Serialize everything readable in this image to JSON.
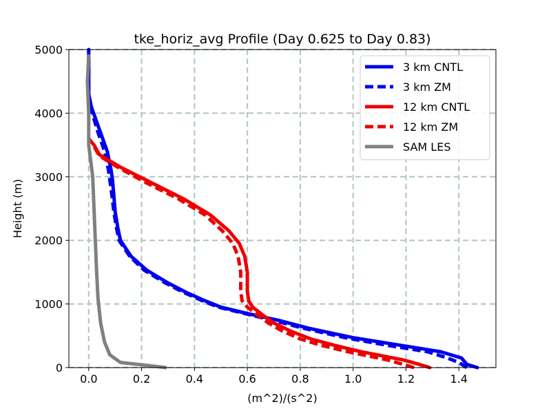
{
  "chart_data": {
    "type": "line",
    "title": "tke_horiz_avg Profile (Day 0.625 to Day 0.83)",
    "xlabel": "(m^2)/(s^2)",
    "ylabel": "Height (m)",
    "xlim": [
      -0.075,
      1.54
    ],
    "ylim": [
      0,
      5000
    ],
    "xticks": [
      0.0,
      0.2,
      0.4,
      0.6,
      0.8,
      1.0,
      1.2,
      1.4
    ],
    "xtick_labels": [
      "0.0",
      "0.2",
      "0.4",
      "0.6",
      "0.8",
      "1.0",
      "1.2",
      "1.4"
    ],
    "yticks": [
      0,
      1000,
      2000,
      3000,
      4000,
      5000
    ],
    "ytick_labels": [
      "0",
      "1000",
      "2000",
      "3000",
      "4000",
      "5000"
    ],
    "grid": true,
    "legend_position": "top-right",
    "series": [
      {
        "name": "3 km CNTL",
        "color": "#0000ee",
        "style": "solid",
        "points": [
          [
            1.47,
            0
          ],
          [
            1.43,
            50
          ],
          [
            1.41,
            150
          ],
          [
            1.33,
            250
          ],
          [
            1.18,
            350
          ],
          [
            1.0,
            470
          ],
          [
            0.83,
            620
          ],
          [
            0.72,
            740
          ],
          [
            0.6,
            850
          ],
          [
            0.5,
            950
          ],
          [
            0.44,
            1050
          ],
          [
            0.37,
            1180
          ],
          [
            0.3,
            1330
          ],
          [
            0.22,
            1530
          ],
          [
            0.16,
            1750
          ],
          [
            0.12,
            2000
          ],
          [
            0.11,
            2200
          ],
          [
            0.1,
            2450
          ],
          [
            0.095,
            2700
          ],
          [
            0.09,
            2950
          ],
          [
            0.085,
            3100
          ],
          [
            0.07,
            3400
          ],
          [
            0.04,
            3750
          ],
          [
            0.01,
            4100
          ],
          [
            0.0,
            4300
          ],
          [
            0.0,
            5000
          ]
        ]
      },
      {
        "name": "3 km ZM",
        "color": "#0000ee",
        "style": "dashed",
        "points": [
          [
            1.43,
            0
          ],
          [
            1.4,
            80
          ],
          [
            1.35,
            160
          ],
          [
            1.28,
            250
          ],
          [
            1.13,
            350
          ],
          [
            0.97,
            470
          ],
          [
            0.81,
            620
          ],
          [
            0.7,
            740
          ],
          [
            0.59,
            850
          ],
          [
            0.49,
            950
          ],
          [
            0.43,
            1050
          ],
          [
            0.36,
            1180
          ],
          [
            0.29,
            1330
          ],
          [
            0.21,
            1530
          ],
          [
            0.155,
            1750
          ],
          [
            0.115,
            2000
          ],
          [
            0.105,
            2200
          ],
          [
            0.095,
            2450
          ],
          [
            0.088,
            2700
          ],
          [
            0.08,
            2950
          ],
          [
            0.075,
            3100
          ],
          [
            0.06,
            3400
          ],
          [
            0.035,
            3700
          ],
          [
            0.01,
            4050
          ],
          [
            0.0,
            4300
          ],
          [
            0.0,
            5000
          ]
        ]
      },
      {
        "name": "12 km CNTL",
        "color": "#ee0000",
        "style": "solid",
        "points": [
          [
            1.29,
            0
          ],
          [
            1.25,
            50
          ],
          [
            1.19,
            120
          ],
          [
            1.03,
            250
          ],
          [
            0.93,
            350
          ],
          [
            0.84,
            450
          ],
          [
            0.76,
            580
          ],
          [
            0.7,
            700
          ],
          [
            0.66,
            820
          ],
          [
            0.62,
            950
          ],
          [
            0.605,
            1050
          ],
          [
            0.6,
            1200
          ],
          [
            0.6,
            1500
          ],
          [
            0.59,
            1750
          ],
          [
            0.57,
            1950
          ],
          [
            0.53,
            2150
          ],
          [
            0.46,
            2400
          ],
          [
            0.36,
            2650
          ],
          [
            0.24,
            2900
          ],
          [
            0.12,
            3150
          ],
          [
            0.04,
            3350
          ],
          [
            0.02,
            3500
          ],
          [
            0.0,
            3600
          ]
        ]
      },
      {
        "name": "12 km ZM",
        "color": "#ee0000",
        "style": "dashed",
        "points": [
          [
            1.23,
            0
          ],
          [
            1.19,
            50
          ],
          [
            1.13,
            120
          ],
          [
            0.98,
            250
          ],
          [
            0.88,
            350
          ],
          [
            0.8,
            450
          ],
          [
            0.73,
            580
          ],
          [
            0.68,
            700
          ],
          [
            0.64,
            820
          ],
          [
            0.6,
            950
          ],
          [
            0.58,
            1050
          ],
          [
            0.575,
            1200
          ],
          [
            0.575,
            1500
          ],
          [
            0.565,
            1750
          ],
          [
            0.545,
            1950
          ],
          [
            0.505,
            2150
          ],
          [
            0.44,
            2400
          ],
          [
            0.34,
            2650
          ],
          [
            0.22,
            2900
          ],
          [
            0.11,
            3150
          ],
          [
            0.04,
            3330
          ],
          [
            0.02,
            3480
          ]
        ]
      },
      {
        "name": "SAM LES",
        "color": "#808080",
        "style": "solid",
        "points": [
          [
            0.29,
            0
          ],
          [
            0.23,
            30
          ],
          [
            0.12,
            80
          ],
          [
            0.08,
            200
          ],
          [
            0.06,
            400
          ],
          [
            0.045,
            700
          ],
          [
            0.035,
            1100
          ],
          [
            0.03,
            1500
          ],
          [
            0.025,
            2000
          ],
          [
            0.02,
            2500
          ],
          [
            0.015,
            3000
          ],
          [
            0.0,
            3500
          ],
          [
            0.0,
            4000
          ],
          [
            -0.005,
            4500
          ],
          [
            0.0,
            4900
          ]
        ]
      }
    ]
  }
}
